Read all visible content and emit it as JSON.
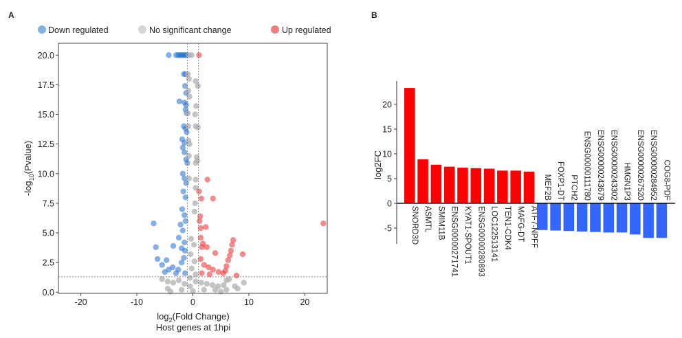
{
  "chart_data": [
    {
      "panel_label": "A",
      "type": "scatter",
      "xlabel_main": "log",
      "xlabel_sub": "2",
      "xlabel_rest": "(Fold Change)",
      "ylabel_main": "-log",
      "ylabel_sub": "10",
      "ylabel_rest": "(Pvalue)",
      "caption": "Host genes at 1hpi",
      "xlim": [
        -24,
        24
      ],
      "ylim": [
        -0.1,
        21
      ],
      "xticks": [
        -20,
        -10,
        0,
        10,
        20
      ],
      "yticks": [
        "0.0",
        "2.5",
        "5.0",
        "7.5",
        "10.0",
        "12.5",
        "15.0",
        "17.5",
        "20.0"
      ],
      "thresholds": {
        "log2fc": [
          -1,
          1
        ],
        "neglog10p": 1.3
      },
      "legend": [
        {
          "label": "Down regulated",
          "color": "#4a90d9"
        },
        {
          "label": "No significant change",
          "color": "#c8c8c8"
        },
        {
          "label": "Up regulated",
          "color": "#ef5b5b"
        }
      ],
      "colors": {
        "down": "#1f6fd1",
        "ns": "#b0b0b0",
        "up": "#ee2a2a"
      },
      "points": [
        [
          -4.3,
          20,
          "down"
        ],
        [
          -3,
          20,
          "down"
        ],
        [
          -2.6,
          20,
          "down"
        ],
        [
          -2.3,
          20,
          "down"
        ],
        [
          -2,
          20,
          "down"
        ],
        [
          -1.7,
          20,
          "down"
        ],
        [
          -1.4,
          20,
          "down"
        ],
        [
          -1.1,
          20,
          "down"
        ],
        [
          -0.7,
          20,
          "ns"
        ],
        [
          -0.2,
          20,
          "ns"
        ],
        [
          1.1,
          20,
          "up"
        ],
        [
          -1.6,
          18.4,
          "down"
        ],
        [
          -1.3,
          18.4,
          "down"
        ],
        [
          -0.9,
          18.4,
          "ns"
        ],
        [
          -0.7,
          18,
          "ns"
        ],
        [
          0.5,
          17.8,
          "ns"
        ],
        [
          0.9,
          17.4,
          "ns"
        ],
        [
          -1.4,
          17.4,
          "down"
        ],
        [
          -1.2,
          16.8,
          "down"
        ],
        [
          -0.8,
          17,
          "ns"
        ],
        [
          -0.6,
          16.5,
          "ns"
        ],
        [
          -2.4,
          16.1,
          "down"
        ],
        [
          -1.5,
          16,
          "down"
        ],
        [
          -1.2,
          15.8,
          "down"
        ],
        [
          -1.3,
          15.4,
          "down"
        ],
        [
          -1.1,
          15.1,
          "down"
        ],
        [
          -0.9,
          15.1,
          "ns"
        ],
        [
          0.6,
          15.7,
          "ns"
        ],
        [
          0.4,
          15,
          "ns"
        ],
        [
          -1.6,
          14,
          "down"
        ],
        [
          -1.3,
          13.8,
          "down"
        ],
        [
          -1.1,
          13.5,
          "down"
        ],
        [
          -0.8,
          14,
          "ns"
        ],
        [
          0.5,
          14,
          "ns"
        ],
        [
          0.9,
          13.9,
          "ns"
        ],
        [
          -1.9,
          12.9,
          "down"
        ],
        [
          -1.5,
          12.6,
          "down"
        ],
        [
          -0.8,
          12.8,
          "ns"
        ],
        [
          -0.6,
          12.5,
          "ns"
        ],
        [
          -1.8,
          12.2,
          "down"
        ],
        [
          -1.5,
          11.8,
          "down"
        ],
        [
          -1.2,
          11.2,
          "down"
        ],
        [
          -1,
          10.9,
          "down"
        ],
        [
          -0.7,
          11.5,
          "ns"
        ],
        [
          0.7,
          11.4,
          "ns"
        ],
        [
          0.8,
          11.1,
          "ns"
        ],
        [
          0.5,
          10.9,
          "ns"
        ],
        [
          -1.8,
          10,
          "down"
        ],
        [
          -1.5,
          9.6,
          "down"
        ],
        [
          -1.2,
          9.2,
          "down"
        ],
        [
          -0.7,
          9.6,
          "ns"
        ],
        [
          0.5,
          9.5,
          "ns"
        ],
        [
          0.5,
          8.8,
          "ns"
        ],
        [
          2.6,
          9.5,
          "up"
        ],
        [
          1.1,
          8.5,
          "up"
        ],
        [
          1.5,
          7.9,
          "up"
        ],
        [
          3.6,
          7.9,
          "up"
        ],
        [
          -1.7,
          8.5,
          "down"
        ],
        [
          -1.3,
          8,
          "down"
        ],
        [
          -1.9,
          7,
          "down"
        ],
        [
          -1.5,
          6.5,
          "down"
        ],
        [
          -1.3,
          6,
          "down"
        ],
        [
          0.4,
          7.5,
          "ns"
        ],
        [
          0.3,
          6.8,
          "ns"
        ],
        [
          1.3,
          6.4,
          "up"
        ],
        [
          1.2,
          6,
          "up"
        ],
        [
          -7,
          5.8,
          "down"
        ],
        [
          23.3,
          5.8,
          "up"
        ],
        [
          -2.2,
          5.7,
          "down"
        ],
        [
          -1.8,
          5.2,
          "down"
        ],
        [
          -2.5,
          4.6,
          "down"
        ],
        [
          -1.5,
          4.2,
          "down"
        ],
        [
          1.4,
          5.4,
          "up"
        ],
        [
          2.3,
          5.5,
          "up"
        ],
        [
          1.4,
          4.6,
          "up"
        ],
        [
          1.8,
          4.1,
          "up"
        ],
        [
          -6.6,
          3.8,
          "down"
        ],
        [
          -3.5,
          3.9,
          "down"
        ],
        [
          -2,
          3.7,
          "down"
        ],
        [
          -1.4,
          3.5,
          "down"
        ],
        [
          1.6,
          3.8,
          "up"
        ],
        [
          2.5,
          3.8,
          "up"
        ],
        [
          4,
          3.3,
          "up"
        ],
        [
          7.2,
          4.4,
          "up"
        ],
        [
          7,
          4,
          "up"
        ],
        [
          6.8,
          3.5,
          "up"
        ],
        [
          8.9,
          3.2,
          "up"
        ],
        [
          -6.3,
          2.8,
          "down"
        ],
        [
          -4.7,
          2.7,
          "down"
        ],
        [
          -5.5,
          2.3,
          "down"
        ],
        [
          -3.6,
          2.1,
          "down"
        ],
        [
          -2.6,
          1.9,
          "down"
        ],
        [
          -2,
          2.5,
          "down"
        ],
        [
          -1.6,
          2.9,
          "down"
        ],
        [
          -4.3,
          1.9,
          "down"
        ],
        [
          -5,
          1.7,
          "down"
        ],
        [
          -3,
          1.6,
          "down"
        ],
        [
          -1.4,
          1.6,
          "down"
        ],
        [
          1.4,
          2.8,
          "up"
        ],
        [
          2,
          2.3,
          "up"
        ],
        [
          2.8,
          2.1,
          "up"
        ],
        [
          3.6,
          1.9,
          "up"
        ],
        [
          4.6,
          1.7,
          "up"
        ],
        [
          5.4,
          1.6,
          "up"
        ],
        [
          6,
          2.2,
          "up"
        ],
        [
          6.3,
          2.7,
          "up"
        ],
        [
          6.6,
          3.1,
          "up"
        ],
        [
          5.8,
          1.8,
          "up"
        ],
        [
          1.6,
          1.6,
          "up"
        ],
        [
          3,
          1.5,
          "up"
        ],
        [
          7.8,
          1.4,
          "up"
        ],
        [
          -0.3,
          4.5,
          "ns"
        ],
        [
          0.2,
          4,
          "ns"
        ],
        [
          -0.4,
          3.2,
          "ns"
        ],
        [
          0.3,
          2.6,
          "ns"
        ],
        [
          -0.2,
          2,
          "ns"
        ],
        [
          0.5,
          1.5,
          "ns"
        ],
        [
          -0.5,
          1.2,
          "ns"
        ],
        [
          -5.5,
          1.1,
          "ns"
        ],
        [
          -4.5,
          0.9,
          "ns"
        ],
        [
          -3.5,
          0.8,
          "ns"
        ],
        [
          -2.5,
          1,
          "ns"
        ],
        [
          -1.5,
          0.7,
          "ns"
        ],
        [
          -0.5,
          0.5,
          "ns"
        ],
        [
          0.5,
          0.9,
          "ns"
        ],
        [
          1.5,
          0.8,
          "ns"
        ],
        [
          2.5,
          0.7,
          "ns"
        ],
        [
          3.5,
          0.6,
          "ns"
        ],
        [
          4.5,
          0.5,
          "ns"
        ],
        [
          5.5,
          0.6,
          "ns"
        ],
        [
          6,
          1,
          "ns"
        ],
        [
          6.5,
          1.1,
          "ns"
        ],
        [
          7.5,
          0.5,
          "ns"
        ],
        [
          8,
          0.3,
          "ns"
        ],
        [
          9.1,
          0.8,
          "ns"
        ],
        [
          -4.5,
          0.3,
          "ns"
        ],
        [
          -2,
          0.2,
          "ns"
        ],
        [
          0,
          0.1,
          "ns"
        ],
        [
          2,
          0.2,
          "ns"
        ],
        [
          4,
          0.2,
          "ns"
        ],
        [
          6,
          0.2,
          "ns"
        ],
        [
          -4,
          0.05,
          "ns"
        ],
        [
          5,
          0.05,
          "ns"
        ]
      ]
    },
    {
      "panel_label": "B",
      "type": "bar",
      "ylabel": "log2FC",
      "ylim": [
        -8.2,
        24.7
      ],
      "yticks": [
        -5,
        0,
        5,
        10,
        15,
        20
      ],
      "colors": {
        "positive": "#ff0000",
        "negative": "#3366ff"
      },
      "categories": [
        "SNORD3D",
        "ASMTL",
        "SMIM11B",
        "ENSG00000271741",
        "KYAT1-SPOUT1",
        "ENSG00000280893",
        "LOC122513141",
        "TEN1-CDK4",
        "MAFG-DT",
        "ATF7-NPFF",
        "MEF2B",
        "FOXP1-DT",
        "PTCH2",
        "ENSG00000111780",
        "ENSG00000243679",
        "ENSG00000243302",
        "HMGN1P3",
        "ENSG00000267520",
        "ENSG00000284952",
        "COG8-PDF"
      ],
      "values": [
        23.3,
        8.9,
        7.8,
        7.4,
        7.2,
        7.1,
        7.0,
        6.6,
        6.6,
        6.4,
        -5.4,
        -5.5,
        -5.6,
        -5.7,
        -5.8,
        -5.9,
        -5.9,
        -6.3,
        -7.0,
        -7.0
      ]
    }
  ]
}
